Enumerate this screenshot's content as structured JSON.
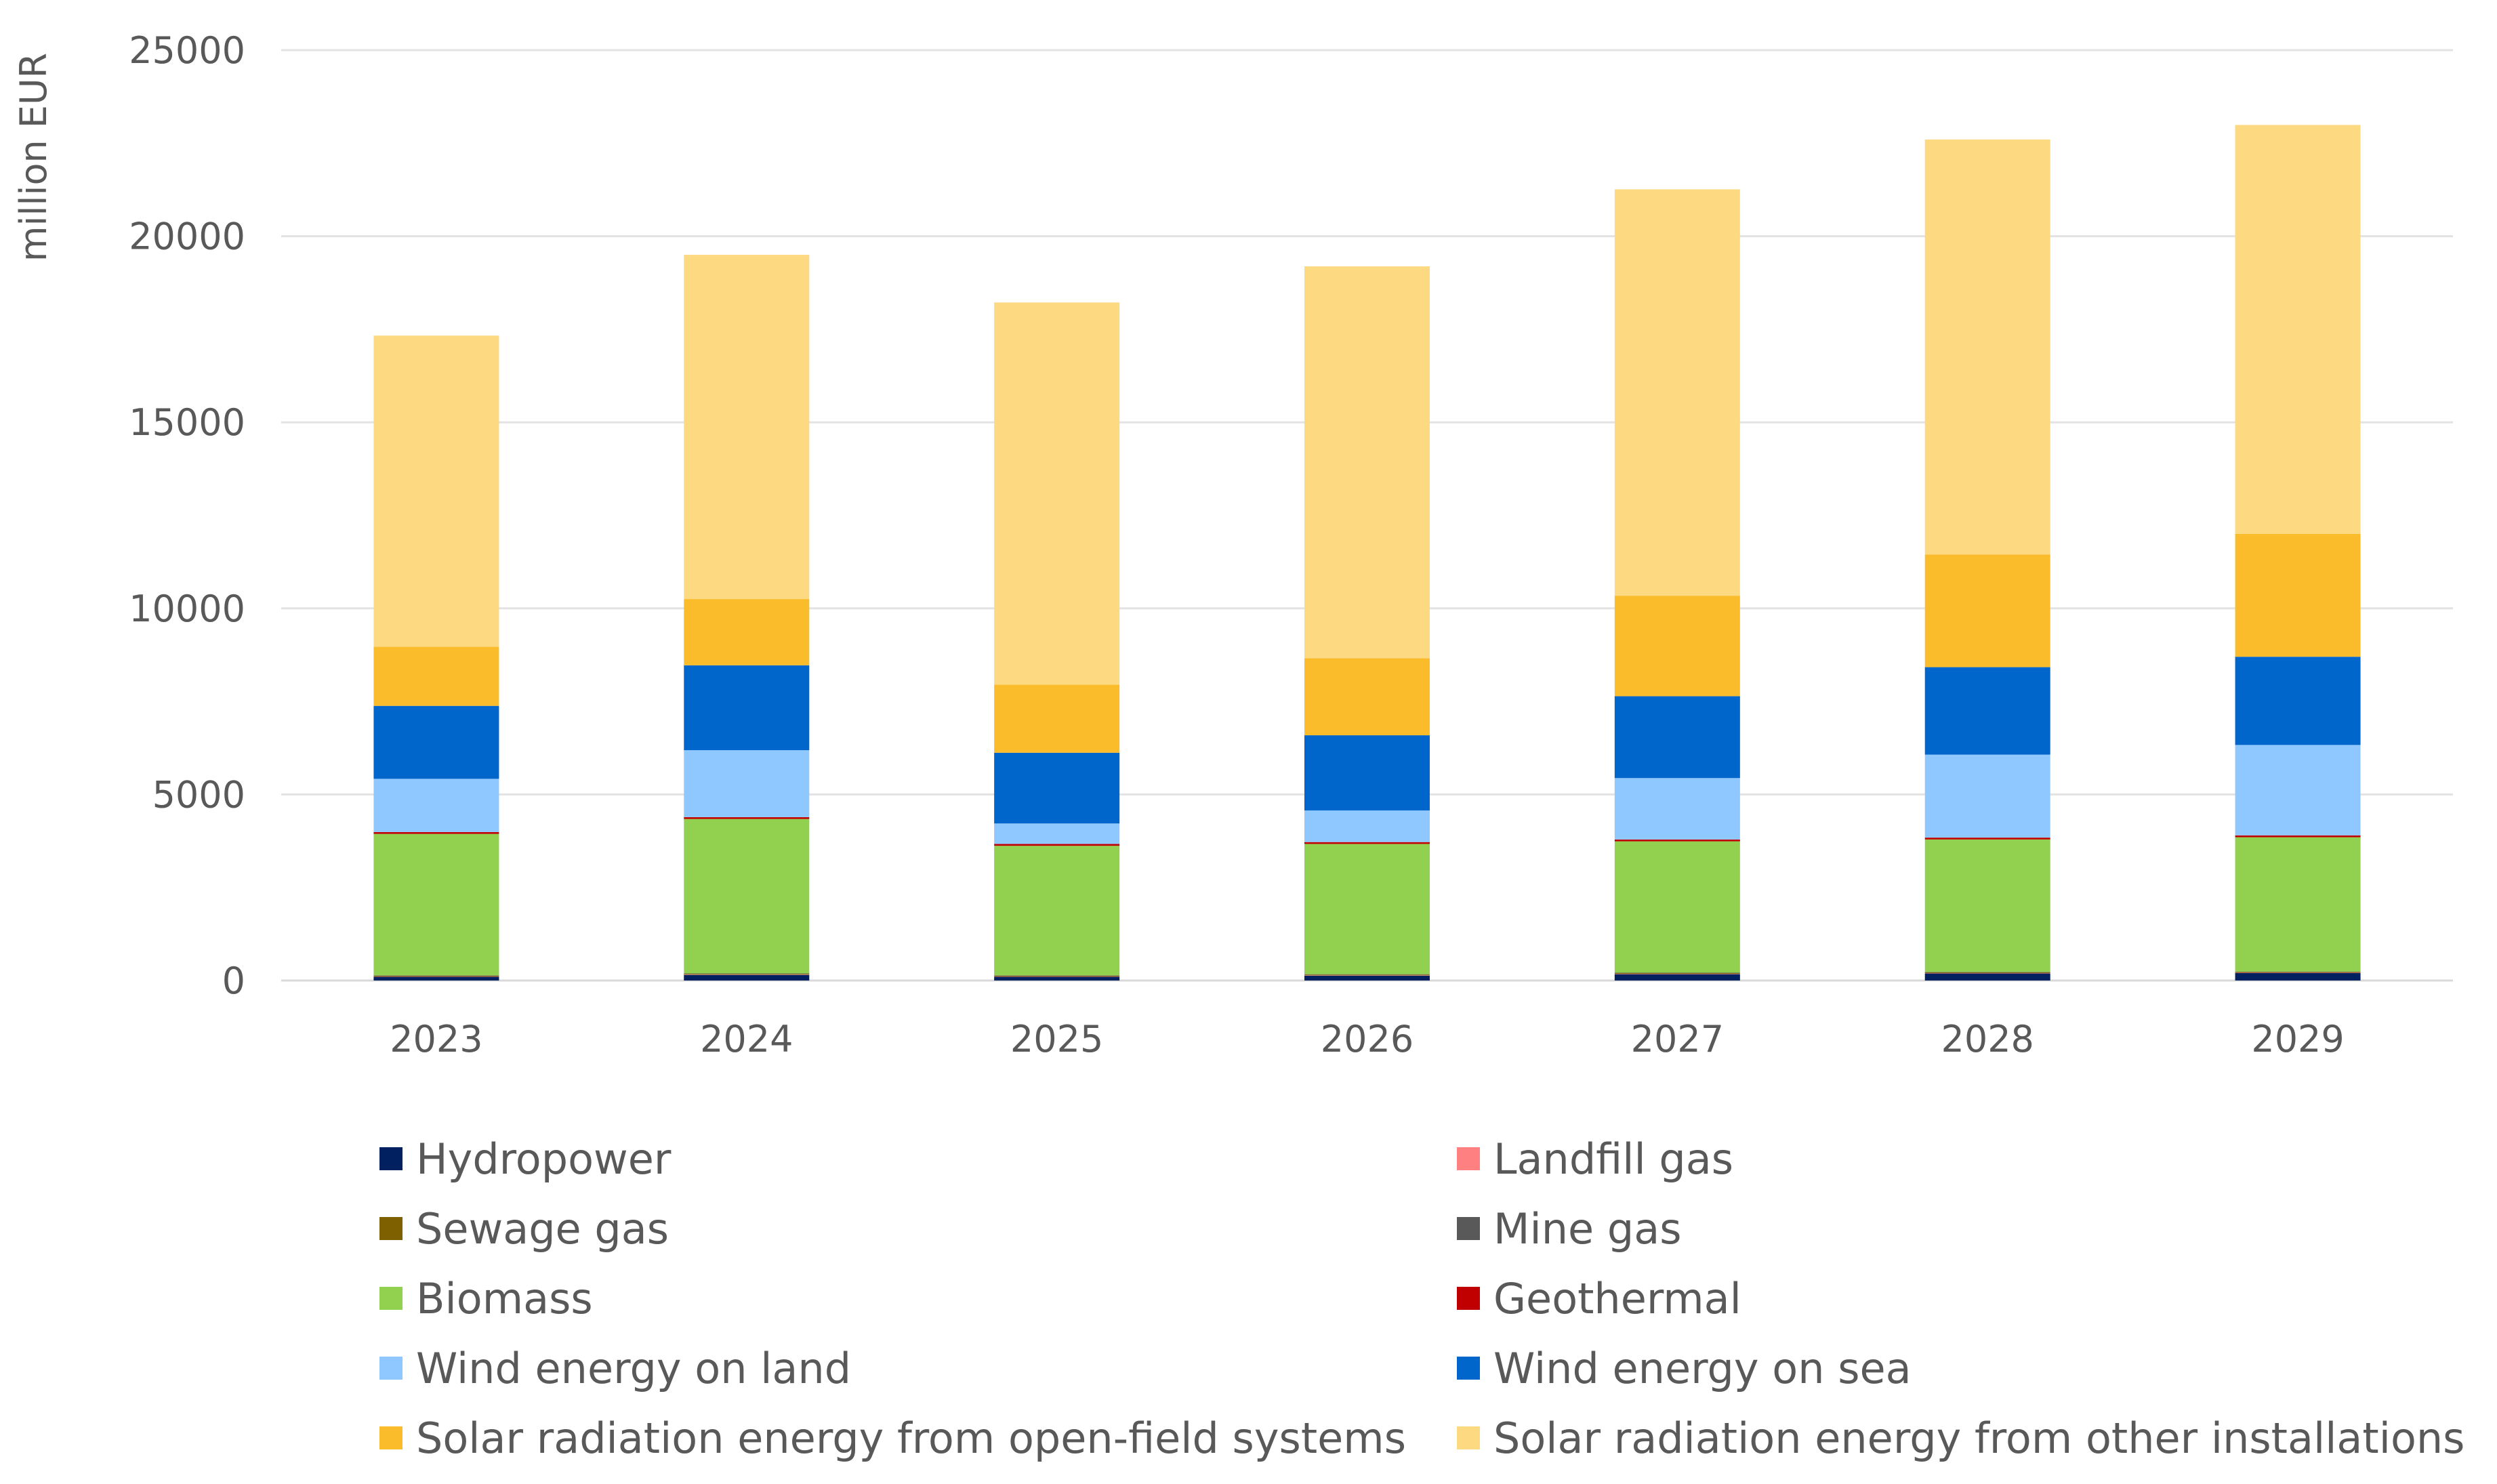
{
  "chart_data": {
    "type": "bar",
    "stacked": true,
    "ylabel": "million EUR",
    "ylim": [
      0,
      25000
    ],
    "yticks": [
      0,
      5000,
      10000,
      15000,
      20000,
      25000
    ],
    "grid": true,
    "legend_position": "bottom",
    "categories": [
      "2023",
      "2024",
      "2025",
      "2026",
      "2027",
      "2028",
      "2029"
    ],
    "series": [
      {
        "name": "Hydropower",
        "color": "#002060",
        "values": [
          100,
          150,
          100,
          130,
          170,
          190,
          200
        ]
      },
      {
        "name": "Landfill gas",
        "color": "#FF8080",
        "values": [
          10,
          10,
          10,
          10,
          10,
          10,
          10
        ]
      },
      {
        "name": "Sewage gas",
        "color": "#7F6000",
        "values": [
          20,
          20,
          20,
          20,
          20,
          20,
          20
        ]
      },
      {
        "name": "Mine gas",
        "color": "#595959",
        "values": [
          10,
          10,
          10,
          10,
          10,
          10,
          10
        ]
      },
      {
        "name": "Biomass",
        "color": "#92D050",
        "values": [
          3800,
          4150,
          3480,
          3500,
          3530,
          3560,
          3610
        ]
      },
      {
        "name": "Geothermal",
        "color": "#C00000",
        "values": [
          50,
          50,
          50,
          50,
          50,
          50,
          50
        ]
      },
      {
        "name": "Wind energy on land",
        "color": "#8FC8FF",
        "values": [
          1430,
          1800,
          550,
          850,
          1650,
          2230,
          2430
        ]
      },
      {
        "name": "Wind energy on sea",
        "color": "#0066CC",
        "values": [
          1960,
          2280,
          1900,
          2020,
          2200,
          2350,
          2370
        ]
      },
      {
        "name": "Solar radiation energy from open-field systems",
        "color": "#FBBC2C",
        "values": [
          1590,
          1780,
          1830,
          2070,
          2700,
          3030,
          3300
        ]
      },
      {
        "name": "Solar radiation energy from other installations",
        "color": "#FDD981",
        "values": [
          8360,
          9250,
          10270,
          10530,
          10920,
          11150,
          10990
        ]
      }
    ]
  },
  "legend": {
    "items": [
      {
        "label": "Hydropower",
        "color": "#002060"
      },
      {
        "label": "Landfill gas",
        "color": "#FF8080"
      },
      {
        "label": "Sewage gas",
        "color": "#7F6000"
      },
      {
        "label": "Mine gas",
        "color": "#595959"
      },
      {
        "label": "Biomass",
        "color": "#92D050"
      },
      {
        "label": "Geothermal",
        "color": "#C00000"
      },
      {
        "label": "Wind energy on land",
        "color": "#8FC8FF"
      },
      {
        "label": "Wind energy on sea",
        "color": "#0066CC"
      },
      {
        "label": "Solar radiation energy from open-field systems",
        "color": "#FBBC2C"
      },
      {
        "label": "Solar radiation energy from other installations",
        "color": "#FDD981"
      }
    ]
  }
}
